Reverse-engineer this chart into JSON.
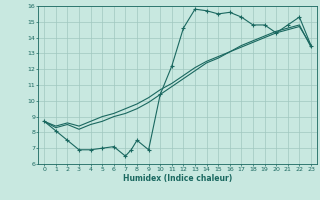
{
  "title": "",
  "xlabel": "Humidex (Indice chaleur)",
  "xlim": [
    -0.5,
    23.5
  ],
  "ylim": [
    6,
    16
  ],
  "xticks": [
    0,
    1,
    2,
    3,
    4,
    5,
    6,
    7,
    8,
    9,
    10,
    11,
    12,
    13,
    14,
    15,
    16,
    17,
    18,
    19,
    20,
    21,
    22,
    23
  ],
  "yticks": [
    6,
    7,
    8,
    9,
    10,
    11,
    12,
    13,
    14,
    15,
    16
  ],
  "bg_color": "#c8e8e0",
  "grid_color": "#a0c8c0",
  "line_color": "#1a6860",
  "line1_x": [
    0,
    1,
    2,
    3,
    4,
    5,
    6,
    7,
    7.5,
    8,
    9,
    10,
    11,
    12,
    13,
    14,
    15,
    16,
    17,
    18,
    19,
    20,
    21,
    22,
    23
  ],
  "line1_y": [
    8.7,
    8.1,
    7.5,
    6.9,
    6.9,
    7.0,
    7.1,
    6.5,
    6.9,
    7.5,
    6.9,
    10.4,
    12.2,
    14.6,
    15.8,
    15.7,
    15.5,
    15.6,
    15.3,
    14.8,
    14.8,
    14.3,
    14.8,
    15.3,
    13.5
  ],
  "line2_x": [
    0,
    1,
    2,
    3,
    4,
    5,
    6,
    7,
    8,
    9,
    10,
    11,
    12,
    13,
    14,
    15,
    16,
    17,
    18,
    19,
    20,
    21,
    22,
    23
  ],
  "line2_y": [
    8.7,
    8.3,
    8.5,
    8.2,
    8.5,
    8.7,
    9.0,
    9.2,
    9.5,
    9.9,
    10.4,
    10.9,
    11.4,
    11.9,
    12.4,
    12.7,
    13.1,
    13.4,
    13.7,
    14.0,
    14.3,
    14.5,
    14.7,
    13.5
  ],
  "line3_x": [
    0,
    1,
    2,
    3,
    4,
    5,
    6,
    7,
    8,
    9,
    10,
    11,
    12,
    13,
    14,
    15,
    16,
    17,
    18,
    19,
    20,
    21,
    22,
    23
  ],
  "line3_y": [
    8.7,
    8.4,
    8.6,
    8.4,
    8.7,
    9.0,
    9.2,
    9.5,
    9.8,
    10.2,
    10.7,
    11.1,
    11.6,
    12.1,
    12.5,
    12.8,
    13.1,
    13.5,
    13.8,
    14.1,
    14.4,
    14.6,
    14.8,
    13.4
  ]
}
